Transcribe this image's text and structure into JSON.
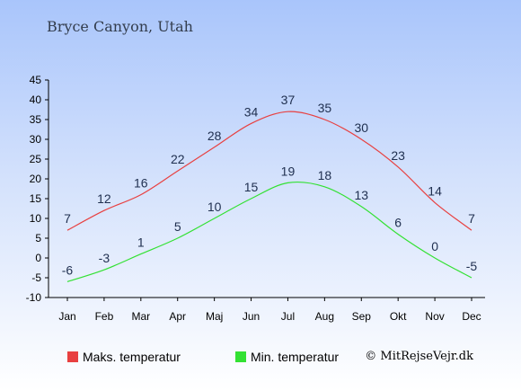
{
  "location": "Bryce Canyon, Utah",
  "legend": {
    "max_label": "Maks. temperatur",
    "min_label": "Min. temperatur"
  },
  "copyright": "© MitRejseVejr.dk",
  "colors": {
    "max": "#e84040",
    "min": "#33e133"
  },
  "chart_data": {
    "type": "line",
    "categories": [
      "Jan",
      "Feb",
      "Mar",
      "Apr",
      "Maj",
      "Jun",
      "Jul",
      "Aug",
      "Sep",
      "Okt",
      "Nov",
      "Dec"
    ],
    "series": [
      {
        "name": "Maks. temperatur",
        "values": [
          7,
          12,
          16,
          22,
          28,
          34,
          37,
          35,
          30,
          23,
          14,
          7
        ]
      },
      {
        "name": "Min. temperatur",
        "values": [
          -6,
          -3,
          1,
          5,
          10,
          15,
          19,
          18,
          13,
          6,
          0,
          -5
        ]
      }
    ],
    "ylim": [
      -10,
      45
    ],
    "yticks": [
      -10,
      -5,
      0,
      5,
      10,
      15,
      20,
      25,
      30,
      35,
      40,
      45
    ],
    "grid": false,
    "legend_position": "bottom"
  }
}
